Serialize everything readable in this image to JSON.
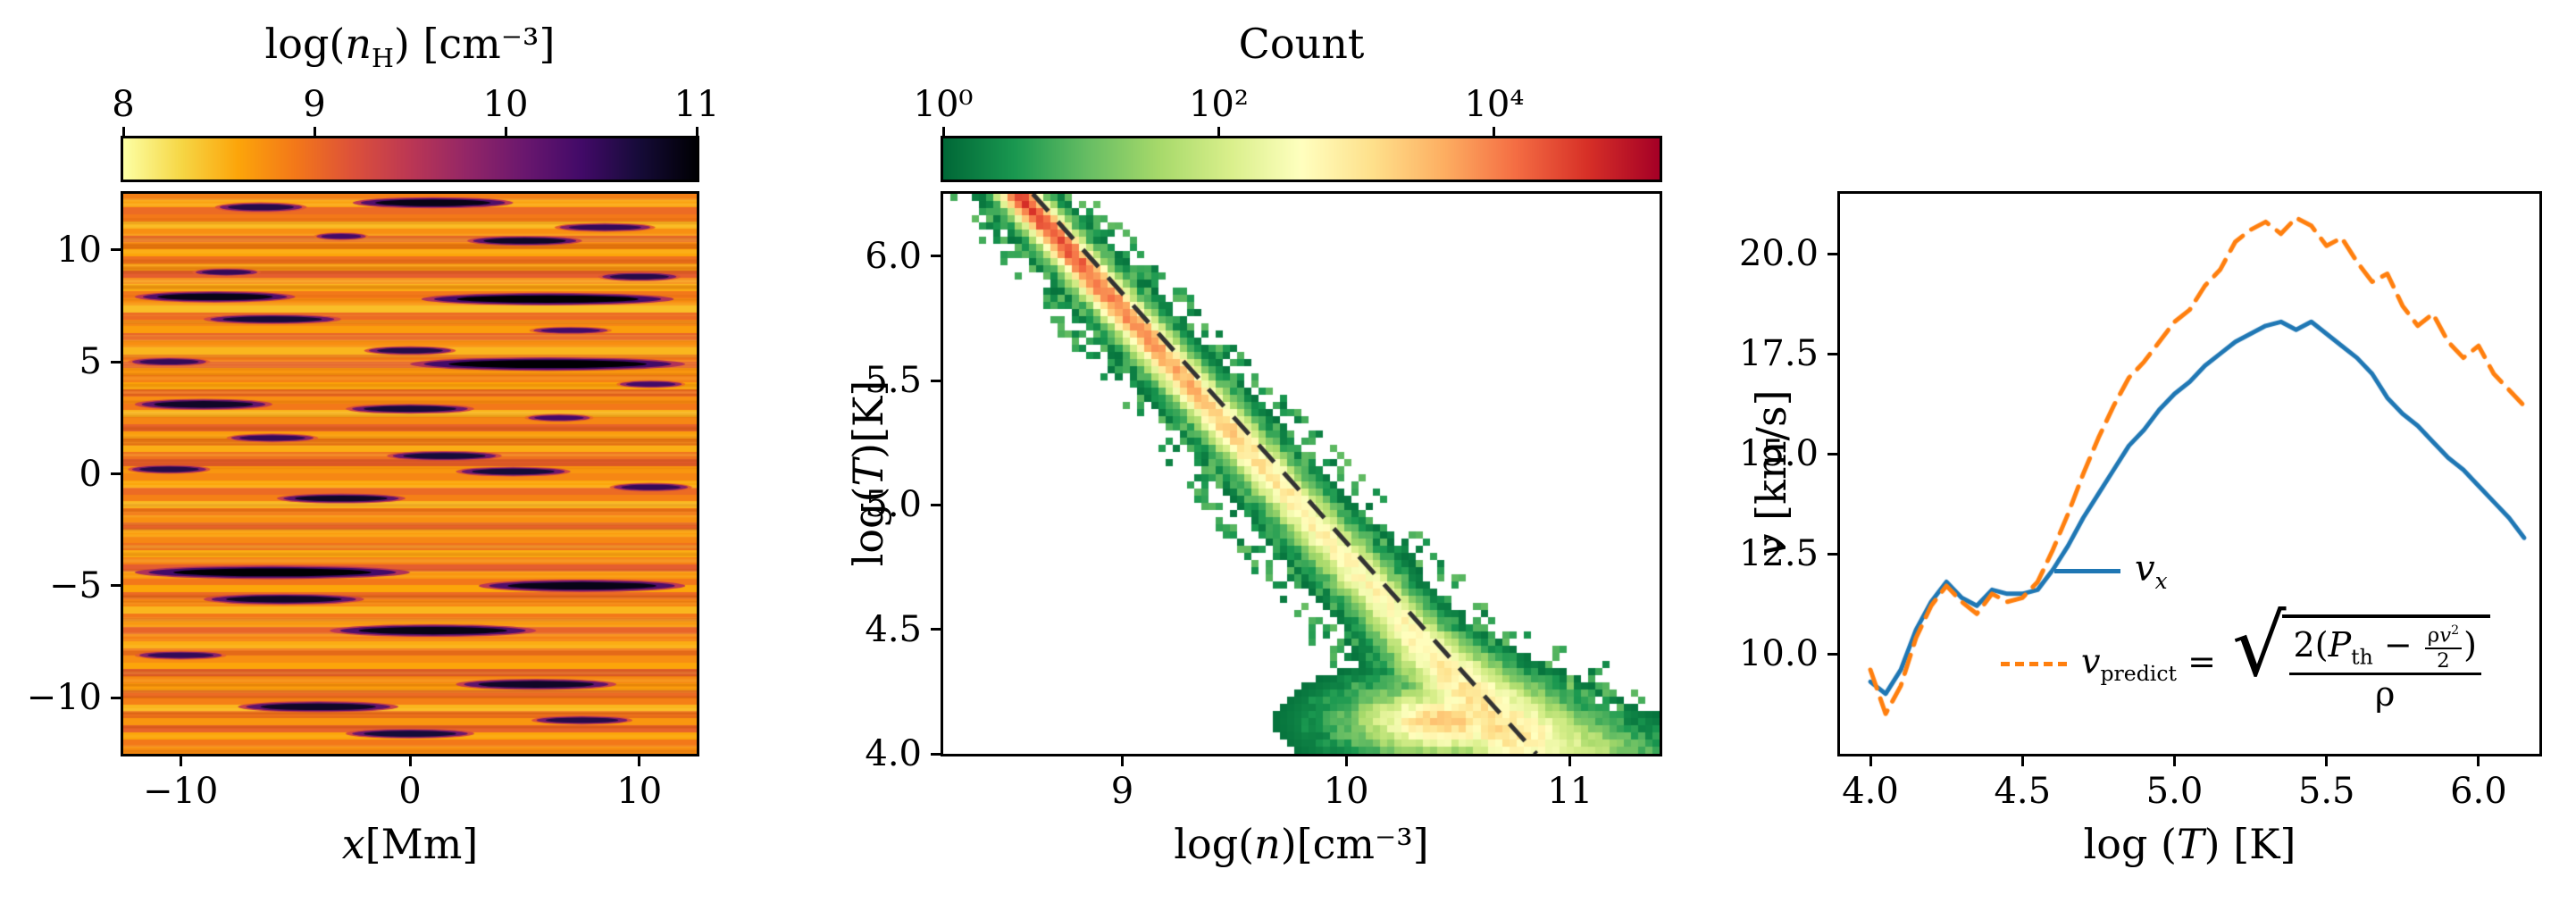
{
  "figure": {
    "background": "#ffffff"
  },
  "colormaps": {
    "inferno": [
      [
        0,
        "#000004"
      ],
      [
        0.1,
        "#160b39"
      ],
      [
        0.2,
        "#420a68"
      ],
      [
        0.3,
        "#6a176e"
      ],
      [
        0.4,
        "#932667"
      ],
      [
        0.5,
        "#bc3754"
      ],
      [
        0.6,
        "#dd513a"
      ],
      [
        0.7,
        "#f37819"
      ],
      [
        0.8,
        "#fca50a"
      ],
      [
        0.9,
        "#f6d746"
      ],
      [
        1,
        "#fcffa4"
      ]
    ],
    "rdylgn_r": [
      [
        0,
        "#006837"
      ],
      [
        0.1,
        "#1a9850"
      ],
      [
        0.2,
        "#66bd63"
      ],
      [
        0.3,
        "#a6d96a"
      ],
      [
        0.4,
        "#d9ef8b"
      ],
      [
        0.5,
        "#ffffbf"
      ],
      [
        0.6,
        "#fee08b"
      ],
      [
        0.7,
        "#fdae61"
      ],
      [
        0.8,
        "#f46d43"
      ],
      [
        0.9,
        "#d73027"
      ],
      [
        1,
        "#a50026"
      ]
    ]
  },
  "chart_data": [
    {
      "id": "density-map",
      "type": "heatmap",
      "title_parts": {
        "a": "log(",
        "it": "n",
        "sub": "H",
        "b": ") [cm⁻³]"
      },
      "colorbar": {
        "ticks": [
          "8",
          "9",
          "10",
          "11"
        ],
        "tick_values": [
          8,
          9,
          10,
          11
        ],
        "range": [
          8,
          11
        ],
        "cmap": "inferno_r"
      },
      "xlabel_it": "x",
      "xlabel_rest": "[Mm]",
      "xlim": [
        -12.5,
        12.5
      ],
      "ylim": [
        -12.5,
        12.5
      ],
      "xticks": {
        "values": [
          -10,
          0,
          10
        ],
        "labels": [
          "−10",
          "0",
          "10"
        ]
      },
      "yticks": {
        "values": [
          10,
          5,
          0,
          -5,
          -10
        ],
        "labels": [
          "10",
          "5",
          "0",
          "−5",
          "−10"
        ]
      },
      "seed": 11,
      "background_rows": [
        8.85,
        8.65,
        9.0,
        8.9,
        8.5,
        8.75,
        9.05,
        8.8,
        8.6,
        8.95,
        8.7,
        9.1,
        8.85,
        8.55,
        8.9,
        8.75,
        8.45,
        9.0,
        8.8,
        8.65,
        9.05,
        8.75,
        8.5,
        8.9,
        9.1,
        8.7,
        8.85,
        8.6,
        9.0,
        8.75,
        8.9,
        8.5,
        8.8,
        9.05,
        8.65,
        8.85,
        8.55,
        8.95,
        9.1,
        8.7,
        8.8,
        8.6,
        9.0,
        8.85,
        8.5,
        8.9,
        8.75,
        9.05,
        8.65,
        8.8,
        8.95,
        8.55,
        8.85,
        9.1,
        8.7,
        8.9,
        8.6,
        9.0,
        8.8,
        8.5,
        8.9,
        8.7,
        9.05,
        8.85,
        8.55,
        8.95,
        8.75,
        8.6,
        9.1,
        8.8,
        8.65,
        9.0,
        8.85,
        8.5,
        8.95,
        8.7,
        9.05,
        8.6,
        8.9,
        8.75
      ],
      "filaments": [
        {
          "x": -6.5,
          "y": 11.9,
          "l": 2.0,
          "t": 0.22,
          "v": 10.6
        },
        {
          "x": 1.0,
          "y": 12.1,
          "l": 3.5,
          "t": 0.25,
          "v": 10.9
        },
        {
          "x": 8.5,
          "y": 11.0,
          "l": 2.2,
          "t": 0.2,
          "v": 10.5
        },
        {
          "x": -3.0,
          "y": 10.6,
          "l": 1.2,
          "t": 0.18,
          "v": 10.4
        },
        {
          "x": 5.0,
          "y": 10.4,
          "l": 2.5,
          "t": 0.22,
          "v": 10.8
        },
        {
          "x": -8.0,
          "y": 9.0,
          "l": 1.5,
          "t": 0.18,
          "v": 10.5
        },
        {
          "x": 10.0,
          "y": 8.8,
          "l": 1.8,
          "t": 0.2,
          "v": 10.6
        },
        {
          "x": -8.5,
          "y": 7.9,
          "l": 3.5,
          "t": 0.25,
          "v": 10.9
        },
        {
          "x": 6.0,
          "y": 7.8,
          "l": 5.5,
          "t": 0.28,
          "v": 11.0
        },
        {
          "x": -6.0,
          "y": 6.9,
          "l": 3.0,
          "t": 0.22,
          "v": 10.7
        },
        {
          "x": 7.0,
          "y": 6.4,
          "l": 1.8,
          "t": 0.18,
          "v": 10.4
        },
        {
          "x": 0.0,
          "y": 5.5,
          "l": 2.0,
          "t": 0.2,
          "v": 10.6
        },
        {
          "x": -10.5,
          "y": 5.0,
          "l": 1.8,
          "t": 0.2,
          "v": 10.5
        },
        {
          "x": 6.0,
          "y": 4.9,
          "l": 6.0,
          "t": 0.3,
          "v": 11.0
        },
        {
          "x": 10.5,
          "y": 4.0,
          "l": 1.5,
          "t": 0.18,
          "v": 10.4
        },
        {
          "x": -9.0,
          "y": 3.1,
          "l": 3.0,
          "t": 0.25,
          "v": 10.8
        },
        {
          "x": 0.0,
          "y": 2.9,
          "l": 2.8,
          "t": 0.22,
          "v": 10.7
        },
        {
          "x": 6.5,
          "y": 2.5,
          "l": 1.5,
          "t": 0.18,
          "v": 10.4
        },
        {
          "x": -6.0,
          "y": 1.6,
          "l": 2.0,
          "t": 0.2,
          "v": 10.5
        },
        {
          "x": 1.5,
          "y": 0.8,
          "l": 2.5,
          "t": 0.22,
          "v": 10.7
        },
        {
          "x": -10.5,
          "y": 0.2,
          "l": 1.8,
          "t": 0.2,
          "v": 10.6
        },
        {
          "x": 4.5,
          "y": 0.1,
          "l": 2.5,
          "t": 0.22,
          "v": 10.7
        },
        {
          "x": 10.5,
          "y": -0.6,
          "l": 1.8,
          "t": 0.2,
          "v": 10.5
        },
        {
          "x": -3.0,
          "y": -1.1,
          "l": 2.8,
          "t": 0.22,
          "v": 10.8
        },
        {
          "x": -6.0,
          "y": -4.4,
          "l": 6.0,
          "t": 0.3,
          "v": 11.0
        },
        {
          "x": 7.5,
          "y": -5.0,
          "l": 4.5,
          "t": 0.28,
          "v": 10.9
        },
        {
          "x": -5.5,
          "y": -5.6,
          "l": 3.5,
          "t": 0.25,
          "v": 10.8
        },
        {
          "x": 1.0,
          "y": -7.0,
          "l": 4.5,
          "t": 0.28,
          "v": 10.9
        },
        {
          "x": -10.0,
          "y": -8.1,
          "l": 2.0,
          "t": 0.2,
          "v": 10.5
        },
        {
          "x": 5.5,
          "y": -9.4,
          "l": 3.5,
          "t": 0.25,
          "v": 10.8
        },
        {
          "x": -4.0,
          "y": -10.4,
          "l": 3.5,
          "t": 0.25,
          "v": 10.8
        },
        {
          "x": 7.5,
          "y": -11.0,
          "l": 2.2,
          "t": 0.2,
          "v": 10.6
        },
        {
          "x": 0.0,
          "y": -11.6,
          "l": 2.8,
          "t": 0.22,
          "v": 10.7
        }
      ]
    },
    {
      "id": "phase-histogram",
      "type": "heatmap",
      "title": "Count",
      "colorbar": {
        "ticks": [
          "10⁰",
          "10²",
          "10⁴"
        ],
        "tick_values": [
          0,
          2,
          4
        ],
        "log_range": [
          0,
          5.2
        ],
        "cmap": "RdYlGn_r"
      },
      "xlabel_parts": {
        "a": "log(",
        "it": "n",
        "b": ")[cm⁻³]"
      },
      "ylabel_parts": {
        "a": "log(",
        "it": "T",
        "b": ")[K]"
      },
      "xlim": [
        8.2,
        11.4
      ],
      "ylim": [
        4.0,
        6.25
      ],
      "xticks": {
        "values": [
          9,
          10,
          11
        ],
        "labels": [
          "9",
          "10",
          "11"
        ]
      },
      "yticks": {
        "values": [
          4.0,
          4.5,
          5.0,
          5.5,
          6.0
        ],
        "labels": [
          "4.0",
          "4.5",
          "5.0",
          "5.5",
          "6.0"
        ]
      },
      "seed": 23,
      "grid": {
        "nx": 100,
        "ny": 78
      },
      "band_top_T": 6.28,
      "ridge_sum_band": 14.78,
      "width_profile": {
        "top": 0.075,
        "slope": 0.025
      },
      "fan_factor": 4,
      "amplitude_profile": [
        [
          6.28,
          4.7
        ],
        [
          6.0,
          4.3
        ],
        [
          5.6,
          3.7
        ],
        [
          5.2,
          3.1
        ],
        [
          4.9,
          2.8
        ],
        [
          4.6,
          2.7
        ],
        [
          4.3,
          2.9
        ],
        [
          4.1,
          3.1
        ],
        [
          4.0,
          2.7
        ]
      ],
      "blob": {
        "n": 10.45,
        "T": 4.13,
        "sn": 0.3,
        "sT": 0.1,
        "amp": 3.3
      },
      "speck_count": 650,
      "tail_specks": 160,
      "dashed_line": {
        "from": [
          8.6,
          6.25
        ],
        "to": [
          10.85,
          4.0
        ],
        "color": "#333333"
      }
    },
    {
      "id": "velocity-profile",
      "type": "line",
      "xlabel_parts": {
        "a": "log (",
        "it": "T",
        "b": ") [K]"
      },
      "ylabel_parts": {
        "it": "v",
        "b": " [km/s]"
      },
      "xlim": [
        3.9,
        6.2
      ],
      "ylim": [
        7.5,
        21.5
      ],
      "xticks": {
        "values": [
          4.0,
          4.5,
          5.0,
          5.5,
          6.0
        ],
        "labels": [
          "4.0",
          "4.5",
          "5.0",
          "5.5",
          "6.0"
        ]
      },
      "yticks": {
        "values": [
          10.0,
          12.5,
          15.0,
          17.5,
          20.0
        ],
        "labels": [
          "10.0",
          "12.5",
          "15.0",
          "17.5",
          "20.0"
        ]
      },
      "x": [
        4.0,
        4.05,
        4.1,
        4.15,
        4.2,
        4.25,
        4.3,
        4.35,
        4.4,
        4.45,
        4.5,
        4.55,
        4.6,
        4.65,
        4.7,
        4.75,
        4.8,
        4.85,
        4.9,
        4.95,
        5.0,
        5.05,
        5.1,
        5.15,
        5.2,
        5.25,
        5.3,
        5.35,
        5.4,
        5.45,
        5.5,
        5.55,
        5.6,
        5.65,
        5.7,
        5.75,
        5.8,
        5.85,
        5.9,
        5.95,
        6.0,
        6.05,
        6.1,
        6.15
      ],
      "series": [
        {
          "name": "v_x",
          "color": "#1f77b4",
          "style": "solid",
          "values": [
            9.3,
            9.0,
            9.6,
            10.6,
            11.3,
            11.8,
            11.4,
            11.2,
            11.6,
            11.5,
            11.5,
            11.6,
            12.1,
            12.7,
            13.4,
            14.0,
            14.6,
            15.2,
            15.6,
            16.1,
            16.5,
            16.8,
            17.2,
            17.5,
            17.8,
            18.0,
            18.2,
            18.3,
            18.1,
            18.3,
            18.0,
            17.7,
            17.4,
            17.0,
            16.4,
            16.0,
            15.7,
            15.3,
            14.9,
            14.6,
            14.2,
            13.8,
            13.4,
            12.9
          ]
        },
        {
          "name": "v_predict",
          "color": "#ff7f0e",
          "style": "dashed",
          "values": [
            9.6,
            8.5,
            9.2,
            10.4,
            11.2,
            11.7,
            11.3,
            11.0,
            11.5,
            11.3,
            11.4,
            11.8,
            12.6,
            13.5,
            14.5,
            15.4,
            16.2,
            16.9,
            17.3,
            17.8,
            18.3,
            18.6,
            19.2,
            19.6,
            20.3,
            20.6,
            20.8,
            20.5,
            20.9,
            20.7,
            20.2,
            20.4,
            19.8,
            19.3,
            19.5,
            18.7,
            18.2,
            18.5,
            17.8,
            17.4,
            17.7,
            17.0,
            16.6,
            16.2
          ]
        }
      ],
      "legend": {
        "vx": {
          "v": "v",
          "sub": "x"
        },
        "vp": {
          "v": "v",
          "sub": "predict",
          "eq": " = ",
          "sqrt": "√",
          "num_a": "2(",
          "P": "P",
          "P_sub": "th",
          "minus": " − ",
          "mf_a": "ρ",
          "mf_b": "v",
          "mf_sup": "2",
          "mf_den": "2",
          "num_close": ")",
          "den": "ρ"
        }
      }
    }
  ]
}
